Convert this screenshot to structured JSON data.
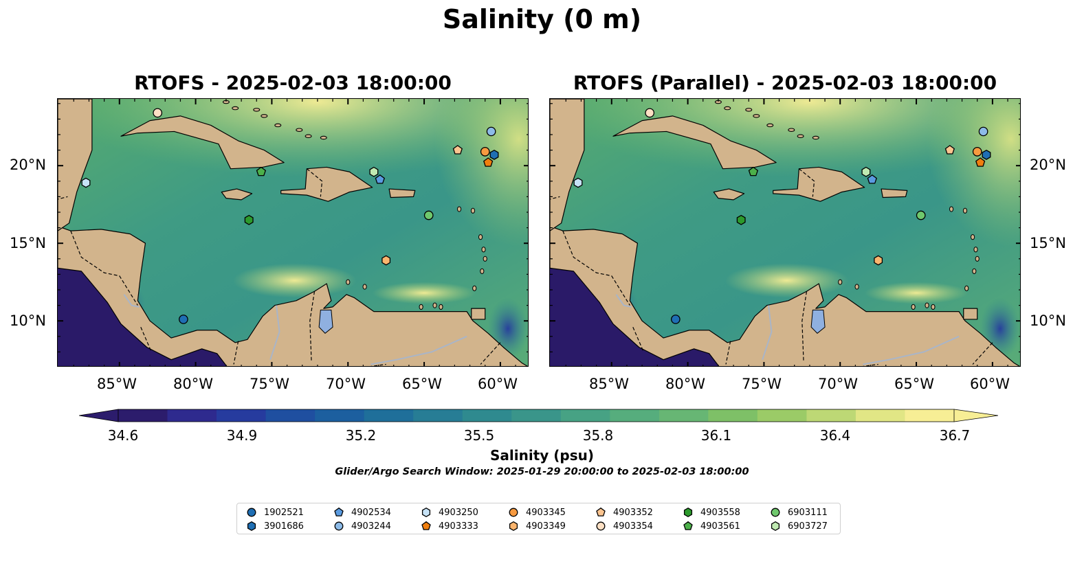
{
  "title": "Salinity (0 m)",
  "panels": [
    {
      "title": "RTOFS - 2025-02-03 18:00:00"
    },
    {
      "title": "RTOFS (Parallel) - 2025-02-03 18:00:00"
    }
  ],
  "axes": {
    "lon_ticks": [
      "85°W",
      "80°W",
      "75°W",
      "70°W",
      "65°W",
      "60°W"
    ],
    "lat_ticks": [
      "20°N",
      "15°N",
      "10°N"
    ]
  },
  "colorbar": {
    "ticks": [
      "34.6",
      "34.9",
      "35.2",
      "35.5",
      "35.8",
      "36.1",
      "36.4",
      "36.7"
    ],
    "label": "Salinity (psu)",
    "colormap": [
      "#2c1c6c",
      "#2e2a8e",
      "#263b9e",
      "#1f4fa0",
      "#1c5f9f",
      "#1f6f9a",
      "#277d95",
      "#2f8a8f",
      "#3a958a",
      "#47a284",
      "#56ad7d",
      "#67b674",
      "#7ec067",
      "#9bcb67",
      "#bdd875",
      "#e1e685",
      "#f7ee95"
    ],
    "extend": "both"
  },
  "search_window": "Glider/Argo Search Window: 2025-01-29 20:00:00 to 2025-02-03 18:00:00",
  "colors": {
    "land": "#d2b48c",
    "pacific": "#2a1a68",
    "lake": "#8fb0e0",
    "river": "#a9b5c8"
  },
  "legend": [
    {
      "id": "1902521",
      "marker": "circle",
      "color": "#1f6fb4"
    },
    {
      "id": "3901686",
      "marker": "hexagon",
      "color": "#1f6fb4"
    },
    {
      "id": "4902534",
      "marker": "pentagon",
      "color": "#5a9be0"
    },
    {
      "id": "4903244",
      "marker": "circle",
      "color": "#8dbbe8"
    },
    {
      "id": "4903250",
      "marker": "hexagon",
      "color": "#c6e2f6"
    },
    {
      "id": "4903333",
      "marker": "pentagon",
      "color": "#f07f0f"
    },
    {
      "id": "4903345",
      "marker": "circle",
      "color": "#f79a40"
    },
    {
      "id": "4903349",
      "marker": "hexagon",
      "color": "#fbb56e"
    },
    {
      "id": "4903352",
      "marker": "pentagon",
      "color": "#fcc590"
    },
    {
      "id": "4903354",
      "marker": "circle",
      "color": "#fde0c4"
    },
    {
      "id": "4903558",
      "marker": "hexagon",
      "color": "#2c9a2c"
    },
    {
      "id": "4903561",
      "marker": "pentagon",
      "color": "#4cb04a"
    },
    {
      "id": "6903111",
      "marker": "circle",
      "color": "#6fc86d"
    },
    {
      "id": "6903727",
      "marker": "hexagon",
      "color": "#c0eab2"
    }
  ],
  "floats": [
    {
      "id": "1902521",
      "lon": -80.8,
      "lat": 10.1
    },
    {
      "id": "3901686",
      "lon": -60.4,
      "lat": 20.7
    },
    {
      "id": "4902534",
      "lon": -67.9,
      "lat": 19.1
    },
    {
      "id": "4903244",
      "lon": -60.6,
      "lat": 22.2
    },
    {
      "id": "4903250",
      "lon": -87.2,
      "lat": 18.9
    },
    {
      "id": "4903333",
      "lon": -60.8,
      "lat": 20.2
    },
    {
      "id": "4903345",
      "lon": -61.0,
      "lat": 20.9
    },
    {
      "id": "4903349",
      "lon": -67.5,
      "lat": 13.9
    },
    {
      "id": "4903352",
      "lon": -62.8,
      "lat": 21.0
    },
    {
      "id": "4903354",
      "lon": -82.5,
      "lat": 23.4
    },
    {
      "id": "4903558",
      "lon": -76.5,
      "lat": 16.5
    },
    {
      "id": "4903561",
      "lon": -75.7,
      "lat": 19.6
    },
    {
      "id": "6903111",
      "lon": -64.7,
      "lat": 16.8
    },
    {
      "id": "6903727",
      "lon": -68.3,
      "lat": 19.6
    }
  ]
}
